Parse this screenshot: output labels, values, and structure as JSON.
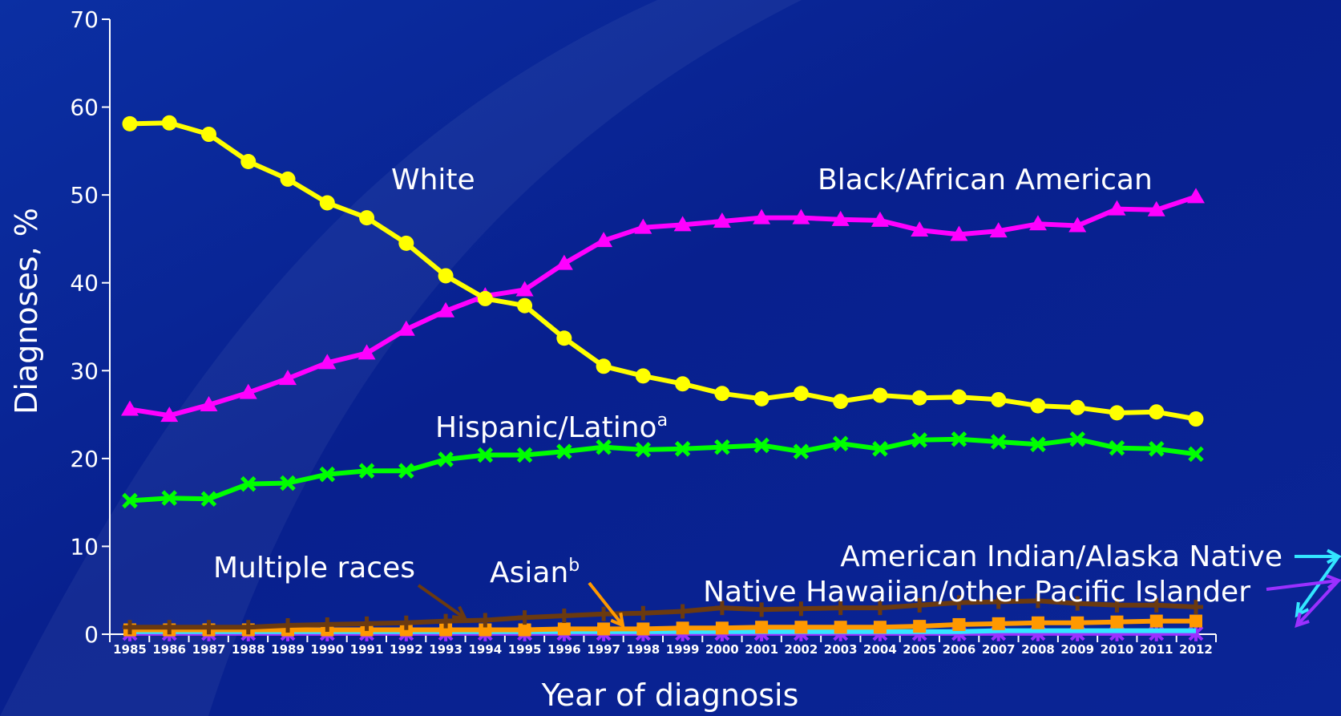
{
  "chart_data": {
    "type": "line",
    "xlabel": "Year of diagnosis",
    "ylabel": "Diagnoses, %",
    "ylim": [
      0,
      70
    ],
    "yticks": [
      0,
      10,
      20,
      30,
      40,
      50,
      60,
      70
    ],
    "grid": false,
    "legend": "inline labels",
    "x": [
      "1985",
      "1986",
      "1987",
      "1988",
      "1989",
      "1990",
      "1991",
      "1992",
      "1993",
      "1994",
      "1995",
      "1996",
      "1997",
      "1998",
      "1999",
      "2000",
      "2001",
      "2002",
      "2003",
      "2004",
      "2005",
      "2006",
      "2007",
      "2008",
      "2009",
      "2010",
      "2011",
      "2012"
    ],
    "series": [
      {
        "name": "White",
        "label": "White",
        "sup": "",
        "color": "#ffff00",
        "marker": "circle",
        "values": [
          58.1,
          58.2,
          56.9,
          53.8,
          51.8,
          49.1,
          47.4,
          44.5,
          40.8,
          38.2,
          37.4,
          33.7,
          30.5,
          29.4,
          28.5,
          27.4,
          26.8,
          27.4,
          26.5,
          27.2,
          26.9,
          27.0,
          26.7,
          26.0,
          25.8,
          25.2,
          25.3,
          24.5
        ]
      },
      {
        "name": "Black/African American",
        "label": "Black/African American",
        "sup": "",
        "color": "#ff00ff",
        "marker": "triangle",
        "values": [
          25.6,
          24.9,
          26.1,
          27.5,
          29.1,
          30.9,
          32.0,
          34.7,
          36.8,
          38.5,
          39.2,
          42.2,
          44.8,
          46.3,
          46.6,
          47.0,
          47.4,
          47.4,
          47.2,
          47.1,
          46.0,
          45.5,
          45.9,
          46.7,
          46.5,
          48.4,
          48.3,
          49.8
        ]
      },
      {
        "name": "Hispanic/Latino",
        "label": "Hispanic/Latino",
        "sup": "a",
        "color": "#00ff00",
        "marker": "x",
        "values": [
          15.2,
          15.5,
          15.4,
          17.1,
          17.2,
          18.2,
          18.6,
          18.6,
          19.9,
          20.4,
          20.4,
          20.8,
          21.3,
          21.0,
          21.1,
          21.3,
          21.5,
          20.8,
          21.7,
          21.1,
          22.1,
          22.2,
          21.9,
          21.6,
          22.2,
          21.2,
          21.1,
          20.5
        ]
      },
      {
        "name": "Multiple races",
        "label": "Multiple races",
        "sup": "",
        "color": "#6b3a10",
        "marker": "plus",
        "values": [
          0.8,
          0.8,
          0.8,
          0.8,
          1.0,
          1.1,
          1.2,
          1.3,
          1.5,
          1.6,
          1.9,
          2.1,
          2.3,
          2.4,
          2.6,
          3.0,
          2.8,
          2.9,
          3.0,
          3.0,
          3.3,
          3.6,
          3.7,
          3.8,
          3.5,
          3.3,
          3.3,
          3.1
        ]
      },
      {
        "name": "Asian",
        "label": "Asian",
        "sup": "b",
        "color": "#ff9900",
        "marker": "square",
        "values": [
          0.5,
          0.5,
          0.5,
          0.5,
          0.5,
          0.5,
          0.5,
          0.5,
          0.5,
          0.5,
          0.5,
          0.6,
          0.6,
          0.6,
          0.7,
          0.7,
          0.8,
          0.8,
          0.8,
          0.8,
          0.9,
          1.1,
          1.2,
          1.3,
          1.3,
          1.4,
          1.5,
          1.5
        ]
      },
      {
        "name": "American Indian/Alaska Native",
        "label": "American Indian/Alaska Native",
        "sup": "",
        "color": "#33e6ff",
        "marker": "none",
        "values": [
          0.3,
          0.3,
          0.3,
          0.3,
          0.3,
          0.3,
          0.3,
          0.3,
          0.3,
          0.3,
          0.3,
          0.3,
          0.3,
          0.3,
          0.3,
          0.3,
          0.3,
          0.3,
          0.3,
          0.3,
          0.3,
          0.3,
          0.4,
          0.4,
          0.4,
          0.4,
          0.4,
          0.4
        ]
      },
      {
        "name": "Native Hawaiian/other Pacific Islander",
        "label": "Native Hawaiian/other Pacific Islander",
        "sup": "",
        "color": "#9b30ff",
        "marker": "star",
        "values": [
          0.1,
          0.1,
          0.1,
          0.1,
          0.1,
          0.1,
          0.1,
          0.1,
          0.1,
          0.1,
          0.1,
          0.1,
          0.1,
          0.1,
          0.1,
          0.1,
          0.1,
          0.1,
          0.1,
          0.1,
          0.1,
          0.1,
          0.1,
          0.1,
          0.1,
          0.1,
          0.1,
          0.1
        ]
      }
    ]
  }
}
